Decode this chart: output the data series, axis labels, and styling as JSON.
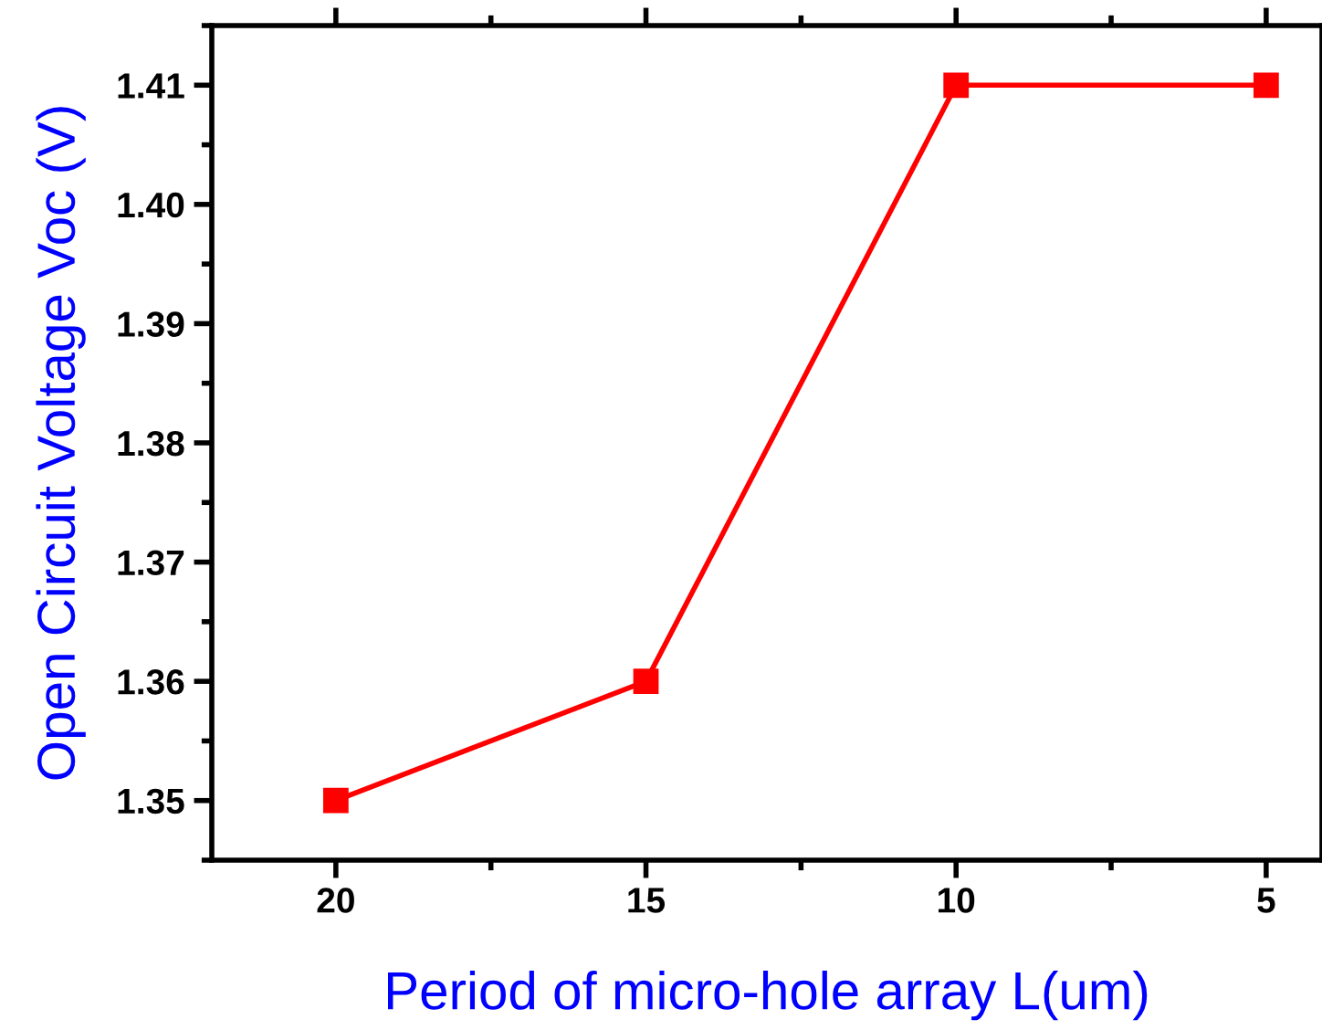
{
  "chart_data": {
    "type": "line",
    "xlabel": "Period of micro-hole array L(um)",
    "ylabel": "Open Circuit Voltage Voc (V)",
    "x": [
      20,
      15,
      10,
      5
    ],
    "series": [
      {
        "color": "#ff0000",
        "values": [
          1.35,
          1.36,
          1.41,
          1.41
        ]
      }
    ],
    "xlim": [
      22,
      4.1
    ],
    "xticks": [
      20,
      15,
      10,
      5
    ],
    "ylim": [
      1.345,
      1.415
    ],
    "yticks": [
      {
        "value": 1.35,
        "label": "1.35"
      },
      {
        "value": 1.36,
        "label": "1.36"
      },
      {
        "value": 1.37,
        "label": "1.37"
      },
      {
        "value": 1.38,
        "label": "1.38"
      },
      {
        "value": 1.39,
        "label": "1.39"
      },
      {
        "value": 1.4,
        "label": "1.40"
      },
      {
        "value": 1.41,
        "label": "1.41"
      }
    ],
    "marker": "square",
    "line_style": "solid",
    "grid": false
  }
}
